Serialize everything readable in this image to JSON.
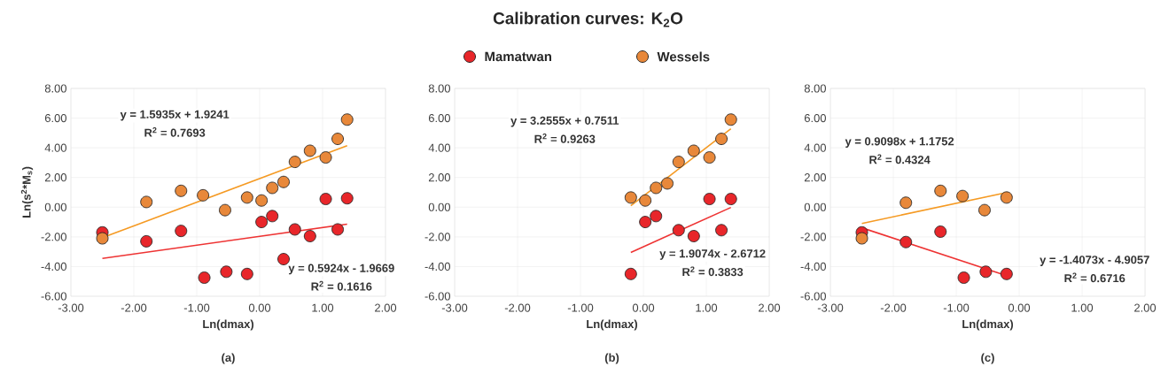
{
  "chart_data": [
    {
      "type": "scatter",
      "xlabel": "Ln(dmax)",
      "ylabel": "Ln(s$^{2}$*M$_{s}$)",
      "grid": true,
      "xlim": [
        -3,
        2
      ],
      "ylim": [
        -6,
        8
      ],
      "xticks": [
        {
          "value": -3,
          "label": "-3.00"
        },
        {
          "value": -2,
          "label": "-2.00"
        },
        {
          "value": -1,
          "label": "-1.00"
        },
        {
          "value": 0,
          "label": "0.00"
        },
        {
          "value": 1,
          "label": "1.00"
        },
        {
          "value": 2,
          "label": "2.00"
        }
      ],
      "yticks": [
        {
          "value": -6,
          "label": "-6.00"
        },
        {
          "value": -4,
          "label": "-4.00"
        },
        {
          "value": -2,
          "label": "-2.00"
        },
        {
          "value": 0,
          "label": "0.00"
        },
        {
          "value": 2,
          "label": "2.00"
        },
        {
          "value": 4,
          "label": "4.00"
        },
        {
          "value": 6,
          "label": "6.00"
        },
        {
          "value": 8,
          "label": "8.00"
        }
      ],
      "series": [
        {
          "marker": "circle",
          "color": "#e8262a",
          "x": [
            -2.5,
            -1.8,
            -1.25,
            -0.88,
            -0.53,
            -0.2,
            0.03,
            0.2,
            0.38,
            0.56,
            0.8,
            1.05,
            1.24,
            1.39
          ],
          "values": [
            -1.7,
            -2.3,
            -1.6,
            -4.75,
            -4.35,
            -4.5,
            -1.0,
            -0.6,
            -3.5,
            -1.5,
            -1.95,
            0.55,
            -1.5,
            0.6
          ]
        },
        {
          "marker": "circle",
          "color": "#e8883a",
          "x": [
            -2.5,
            -1.8,
            -1.25,
            -0.9,
            -0.55,
            -0.2,
            0.03,
            0.2,
            0.38,
            0.56,
            0.8,
            1.05,
            1.24,
            1.39
          ],
          "values": [
            -2.1,
            0.35,
            1.1,
            0.8,
            -0.2,
            0.65,
            0.45,
            1.3,
            1.7,
            3.05,
            3.8,
            3.35,
            4.6,
            5.9
          ]
        },
        {
          "type": "line",
          "marker": "none",
          "color": "#f59a23",
          "x": [
            -2.5,
            1.39
          ],
          "values": [
            -2.06,
            4.14
          ]
        },
        {
          "type": "line",
          "marker": "none",
          "color": "#ee3333",
          "x": [
            -2.5,
            1.39
          ],
          "values": [
            -3.45,
            -1.14
          ]
        }
      ],
      "annotations": [
        "y = 1.5935x + 1.9241",
        "R$^{2}$ = 0.7693",
        "y = 0.5924x - 1.9669",
        "R$^{2}$ = 0.1616",
        "(a)"
      ]
    },
    {
      "type": "scatter",
      "title": "Calibration curves: K$_{2}$O",
      "legend": "top",
      "xlabel": "Ln(dmax)",
      "grid": true,
      "xlim": [
        -3,
        2
      ],
      "ylim": [
        -6,
        8
      ],
      "xticks": [
        {
          "value": -3,
          "label": "-3.00"
        },
        {
          "value": -2,
          "label": "-2.00"
        },
        {
          "value": -1,
          "label": "-1.00"
        },
        {
          "value": 0,
          "label": "0.00"
        },
        {
          "value": 1,
          "label": "1.00"
        },
        {
          "value": 2,
          "label": "2.00"
        }
      ],
      "yticks": [
        {
          "value": -6,
          "label": "-6.00"
        },
        {
          "value": -4,
          "label": "-4.00"
        },
        {
          "value": -2,
          "label": "-2.00"
        },
        {
          "value": 0,
          "label": "0.00"
        },
        {
          "value": 2,
          "label": "2.00"
        },
        {
          "value": 4,
          "label": "4.00"
        },
        {
          "value": 6,
          "label": "6.00"
        },
        {
          "value": 8,
          "label": "8.00"
        }
      ],
      "series": [
        {
          "name": "Mamatwan",
          "marker": "circle",
          "color": "#e8262a",
          "x": [
            -0.2,
            0.03,
            0.2,
            0.56,
            0.8,
            1.05,
            1.24,
            1.39
          ],
          "values": [
            -4.5,
            -1.0,
            -0.6,
            -1.55,
            -1.95,
            0.55,
            -1.55,
            0.55
          ]
        },
        {
          "name": "Wessels",
          "marker": "circle",
          "color": "#e8883a",
          "x": [
            -0.2,
            0.03,
            0.2,
            0.38,
            0.56,
            0.8,
            1.05,
            1.24,
            1.39
          ],
          "values": [
            0.65,
            0.45,
            1.3,
            1.6,
            3.05,
            3.8,
            3.35,
            4.6,
            5.9
          ]
        },
        {
          "type": "line",
          "marker": "none",
          "color": "#f59a23",
          "x": [
            -0.2,
            1.39
          ],
          "values": [
            0.1,
            5.28
          ]
        },
        {
          "type": "line",
          "marker": "none",
          "color": "#ee3333",
          "x": [
            -0.2,
            1.39
          ],
          "values": [
            -3.05,
            -0.02
          ]
        }
      ],
      "annotations": [
        "y = 3.2555x + 0.7511",
        "R$^{2}$ = 0.9263",
        "y = 1.9074x - 2.6712",
        "R$^{2}$ = 0.3833",
        "(b)"
      ]
    },
    {
      "type": "scatter",
      "xlabel": "Ln(dmax)",
      "grid": true,
      "xlim": [
        -3,
        2
      ],
      "ylim": [
        -6,
        8
      ],
      "xticks": [
        {
          "value": -3,
          "label": "-3.00"
        },
        {
          "value": -2,
          "label": "-2.00"
        },
        {
          "value": -1,
          "label": "-1.00"
        },
        {
          "value": 0,
          "label": "0.00"
        },
        {
          "value": 1,
          "label": "1.00"
        },
        {
          "value": 2,
          "label": "2.00"
        }
      ],
      "yticks": [
        {
          "value": -6,
          "label": "-6.00"
        },
        {
          "value": -4,
          "label": "-4.00"
        },
        {
          "value": -2,
          "label": "-2.00"
        },
        {
          "value": 0,
          "label": "0.00"
        },
        {
          "value": 2,
          "label": "2.00"
        },
        {
          "value": 4,
          "label": "4.00"
        },
        {
          "value": 6,
          "label": "6.00"
        },
        {
          "value": 8,
          "label": "8.00"
        }
      ],
      "series": [
        {
          "marker": "circle",
          "color": "#e8262a",
          "x": [
            -2.5,
            -1.8,
            -1.25,
            -0.88,
            -0.53,
            -0.2
          ],
          "values": [
            -1.7,
            -2.35,
            -1.65,
            -4.75,
            -4.35,
            -4.5
          ]
        },
        {
          "marker": "circle",
          "color": "#e8883a",
          "x": [
            -2.5,
            -1.8,
            -1.25,
            -0.9,
            -0.55,
            -0.2
          ],
          "values": [
            -2.1,
            0.3,
            1.1,
            0.75,
            -0.2,
            0.65
          ]
        },
        {
          "type": "line",
          "marker": "none",
          "color": "#f59a23",
          "x": [
            -2.5,
            -0.2
          ],
          "values": [
            -1.1,
            0.99
          ]
        },
        {
          "type": "line",
          "marker": "none",
          "color": "#ee3333",
          "x": [
            -2.5,
            -0.2
          ],
          "values": [
            -1.39,
            -4.62
          ]
        }
      ],
      "annotations": [
        "y = 0.9098x + 1.1752",
        "R$^{2}$ = 0.4324",
        "y = -1.4073x - 4.9057",
        "R$^{2}$ = 0.6716",
        "(c)"
      ]
    }
  ]
}
